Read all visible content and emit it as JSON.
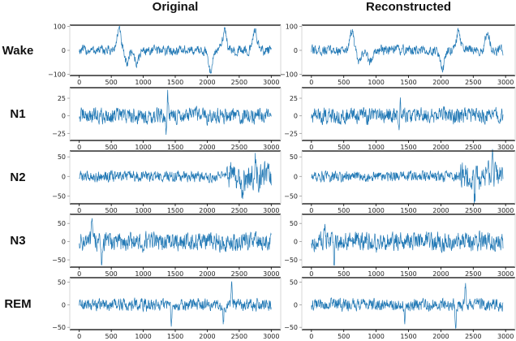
{
  "chart_data": {
    "type": "line",
    "layout": "grid 5 rows x 2 columns of small-multiple line plots",
    "column_titles": [
      "Original",
      "Reconstructed"
    ],
    "row_labels": [
      "Wake",
      "N1",
      "N2",
      "N3",
      "REM"
    ],
    "xlabel": "",
    "ylabel": "",
    "x_range": [
      0,
      3000
    ],
    "x_ticks": [
      0,
      500,
      1000,
      1500,
      2000,
      2500,
      3000
    ],
    "x_tick_labels": [
      "0",
      "500",
      "1000",
      "1500",
      "2000",
      "2500",
      "3000"
    ],
    "grid": false,
    "legend": "none",
    "line_color": "#1f77b4",
    "rows": [
      {
        "label": "Wake",
        "ylim": [
          -105,
          105
        ],
        "y_ticks": [
          -100,
          0,
          100
        ],
        "y_tick_labels": [
          "-100",
          "0",
          "100"
        ],
        "original": {
          "n_points": 3000,
          "baseline_amplitude": 18,
          "min": -100,
          "max": 100,
          "notable_events": [
            {
              "x": 620,
              "y": 100
            },
            {
              "x": 740,
              "y": -65
            },
            {
              "x": 900,
              "y": -65
            },
            {
              "x": 2050,
              "y": -100
            },
            {
              "x": 2270,
              "y": 100
            },
            {
              "x": 2750,
              "y": 100
            }
          ]
        },
        "reconstructed": {
          "n_points": 2960,
          "baseline_amplitude": 18,
          "min": -90,
          "max": 95,
          "notable_events": [
            {
              "x": 620,
              "y": 95
            },
            {
              "x": 740,
              "y": -65
            },
            {
              "x": 900,
              "y": -60
            },
            {
              "x": 2030,
              "y": -90
            },
            {
              "x": 2270,
              "y": 85
            },
            {
              "x": 2720,
              "y": 90
            }
          ]
        }
      },
      {
        "label": "N1",
        "ylim": [
          -35,
          40
        ],
        "y_ticks": [
          -25,
          0,
          25
        ],
        "y_tick_labels": [
          "-25",
          "0",
          "25"
        ],
        "original": {
          "n_points": 3000,
          "baseline_amplitude": 10,
          "min": -30,
          "max": 37,
          "notable_events": [
            {
              "x": 1380,
              "y": 37
            },
            {
              "x": 1360,
              "y": -30
            }
          ]
        },
        "reconstructed": {
          "n_points": 2960,
          "baseline_amplitude": 10,
          "min": -30,
          "max": 27,
          "notable_events": [
            {
              "x": 1370,
              "y": 27
            },
            {
              "x": 1360,
              "y": -30
            }
          ]
        }
      },
      {
        "label": "N2",
        "ylim": [
          -70,
          65
        ],
        "y_ticks": [
          -50,
          0,
          50
        ],
        "y_tick_labels": [
          "-50",
          "0",
          "50"
        ],
        "original": {
          "n_points": 3000,
          "baseline_amplitude": 12,
          "min": -65,
          "max": 60,
          "burst_region": [
            2300,
            3000
          ],
          "notable_events": [
            {
              "x": 2750,
              "y": 60
            },
            {
              "x": 2550,
              "y": -65
            }
          ]
        },
        "reconstructed": {
          "n_points": 2960,
          "baseline_amplitude": 12,
          "min": -70,
          "max": 70,
          "burst_region": [
            2300,
            2960
          ],
          "notable_events": [
            {
              "x": 2800,
              "y": 70
            },
            {
              "x": 2520,
              "y": -70
            }
          ]
        }
      },
      {
        "label": "N3",
        "ylim": [
          -70,
          75
        ],
        "y_ticks": [
          -50,
          0,
          50
        ],
        "y_tick_labels": [
          "-50",
          "0",
          "50"
        ],
        "original": {
          "n_points": 3000,
          "baseline_amplitude": 22,
          "min": -65,
          "max": 70,
          "notable_events": [
            {
              "x": 200,
              "y": 70
            },
            {
              "x": 350,
              "y": -65
            },
            {
              "x": 1000,
              "y": -55
            }
          ]
        },
        "reconstructed": {
          "n_points": 2960,
          "baseline_amplitude": 22,
          "min": -65,
          "max": 70,
          "notable_events": [
            {
              "x": 200,
              "y": 70
            },
            {
              "x": 350,
              "y": -65
            },
            {
              "x": 1000,
              "y": -55
            }
          ]
        }
      },
      {
        "label": "REM",
        "ylim": [
          -55,
          60
        ],
        "y_ticks": [
          -50,
          0,
          50
        ],
        "y_tick_labels": [
          "-50",
          "0",
          "50"
        ],
        "original": {
          "n_points": 3000,
          "baseline_amplitude": 12,
          "min": -55,
          "max": 55,
          "notable_events": [
            {
              "x": 2380,
              "y": 55
            },
            {
              "x": 2250,
              "y": -55
            },
            {
              "x": 1440,
              "y": -45
            }
          ]
        },
        "reconstructed": {
          "n_points": 2960,
          "baseline_amplitude": 12,
          "min": -52,
          "max": 48,
          "notable_events": [
            {
              "x": 2380,
              "y": 48
            },
            {
              "x": 2230,
              "y": -52
            },
            {
              "x": 1440,
              "y": -45
            }
          ]
        }
      }
    ]
  },
  "figure": {
    "titles": {
      "original": "Original",
      "reconstructed": "Reconstructed"
    },
    "row_labels": {
      "wake": "Wake",
      "n1": "N1",
      "n2": "N2",
      "n3": "N3",
      "rem": "REM"
    }
  }
}
